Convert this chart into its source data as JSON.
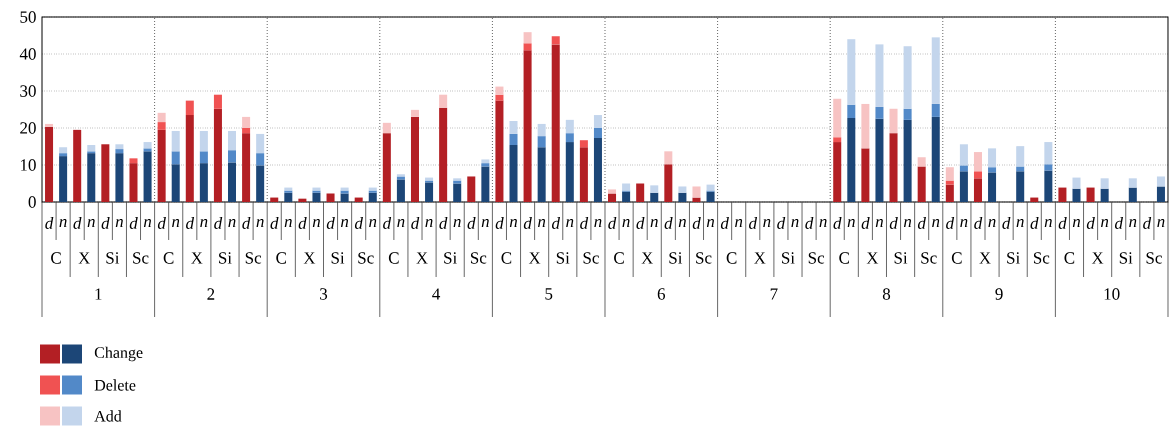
{
  "chart_data": {
    "type": "bar",
    "stacked": true,
    "grid": true,
    "legend": "bottom left",
    "categories": [
      "d",
      "n",
      "d",
      "n",
      "d",
      "n",
      "d",
      "n",
      "d",
      "n",
      "d",
      "n",
      "d",
      "n",
      "d",
      "n",
      "d",
      "n",
      "d",
      "n",
      "d",
      "n",
      "d",
      "n",
      "d",
      "n",
      "d",
      "n",
      "d",
      "n",
      "d",
      "n",
      "d",
      "n",
      "d",
      "n",
      "d",
      "n",
      "d",
      "n",
      "d",
      "n",
      "d",
      "n",
      "d",
      "n",
      "d",
      "n",
      "d",
      "n",
      "d",
      "n",
      "d",
      "n",
      "d",
      "n",
      "d",
      "n",
      "d",
      "n",
      "d",
      "n",
      "d",
      "n",
      "d",
      "n",
      "d",
      "n",
      "d",
      "n",
      "d",
      "n",
      "d",
      "n",
      "d",
      "n",
      "d",
      "n",
      "d",
      "n"
    ],
    "annotations": [
      "C",
      "X",
      "Si",
      "Sc",
      "C",
      "X",
      "Si",
      "Sc",
      "C",
      "X",
      "Si",
      "Sc",
      "C",
      "X",
      "Si",
      "Sc",
      "C",
      "X",
      "Si",
      "Sc",
      "C",
      "X",
      "Si",
      "Sc",
      "C",
      "X",
      "Si",
      "Sc",
      "C",
      "X",
      "Si",
      "Sc",
      "C",
      "X",
      "Si",
      "Sc",
      "C",
      "X",
      "Si",
      "Sc",
      "1",
      "2",
      "3",
      "4",
      "5",
      "6",
      "7",
      "8",
      "9",
      "10"
    ],
    "ylim": [
      0,
      50
    ],
    "yticks": [
      0,
      10,
      20,
      30,
      40,
      50
    ],
    "series": [
      {
        "name": "Change",
        "colors": [
          "#b31f24",
          "#1c4677",
          "#b31f24",
          "#1c4677",
          "#b31f24",
          "#1c4677",
          "#b31f24",
          "#1c4677",
          "#b31f24",
          "#1c4677",
          "#b31f24",
          "#1c4677",
          "#b31f24",
          "#1c4677",
          "#b31f24",
          "#1c4677",
          "#b31f24",
          "#1c4677",
          "#b31f24",
          "#1c4677",
          "#b31f24",
          "#1c4677",
          "#b31f24",
          "#1c4677",
          "#b31f24",
          "#1c4677",
          "#b31f24",
          "#1c4677",
          "#b31f24",
          "#1c4677",
          "#b31f24",
          "#1c4677",
          "#b31f24",
          "#1c4677",
          "#b31f24",
          "#1c4677",
          "#b31f24",
          "#1c4677",
          "#b31f24",
          "#1c4677",
          "#b31f24",
          "#1c4677",
          "#b31f24",
          "#1c4677",
          "#b31f24",
          "#1c4677",
          "#b31f24",
          "#1c4677",
          "#b31f24",
          "#1c4677",
          "#b31f24",
          "#1c4677",
          "#b31f24",
          "#1c4677",
          "#b31f24",
          "#1c4677",
          "#b31f24",
          "#1c4677",
          "#b31f24",
          "#1c4677",
          "#b31f24",
          "#1c4677",
          "#b31f24",
          "#1c4677",
          "#b31f24",
          "#1c4677",
          "#b31f24",
          "#1c4677",
          "#b31f24",
          "#1c4677",
          "#b31f24",
          "#1c4677",
          "#b31f24",
          "#1c4677",
          "#b31f24",
          "#1c4677",
          "#b31f24",
          "#1c4677",
          "#b31f24",
          "#1c4677"
        ],
        "values": [
          20.3,
          12.4,
          19.5,
          13.2,
          15.6,
          13.2,
          10.5,
          13.7,
          19.5,
          10.2,
          23.5,
          10.5,
          25.2,
          10.7,
          18.6,
          9.9,
          1.2,
          2.5,
          0.9,
          2.5,
          2.3,
          2.3,
          1.2,
          2.5,
          18.6,
          6.1,
          23.0,
          5.3,
          25.5,
          5.0,
          6.9,
          9.6,
          27.4,
          15.4,
          41.0,
          14.8,
          42.6,
          16.2,
          14.8,
          17.3,
          2.3,
          2.8,
          5.0,
          2.5,
          10.2,
          2.5,
          1.2,
          2.8,
          0,
          0,
          0,
          0,
          0,
          0,
          0,
          0,
          16.2,
          22.7,
          14.5,
          22.5,
          18.6,
          22.2,
          9.6,
          23.0,
          4.7,
          8.3,
          6.4,
          8.0,
          0,
          8.3,
          1.2,
          8.5,
          3.9,
          3.6,
          3.9,
          3.6,
          0,
          3.9,
          0,
          4.2
        ]
      },
      {
        "name": "Delete",
        "colors": [
          "#f05252",
          "#5289c8",
          "#f05252",
          "#5289c8",
          "#f05252",
          "#5289c8",
          "#f05252",
          "#5289c8",
          "#f05252",
          "#5289c8",
          "#f05252",
          "#5289c8",
          "#f05252",
          "#5289c8",
          "#f05252",
          "#5289c8",
          "#f05252",
          "#5289c8",
          "#f05252",
          "#5289c8",
          "#f05252",
          "#5289c8",
          "#f05252",
          "#5289c8",
          "#f05252",
          "#5289c8",
          "#f05252",
          "#5289c8",
          "#f05252",
          "#5289c8",
          "#f05252",
          "#5289c8",
          "#f05252",
          "#5289c8",
          "#f05252",
          "#5289c8",
          "#f05252",
          "#5289c8",
          "#f05252",
          "#5289c8",
          "#f05252",
          "#5289c8",
          "#f05252",
          "#5289c8",
          "#f05252",
          "#5289c8",
          "#f05252",
          "#5289c8",
          "#f05252",
          "#5289c8",
          "#f05252",
          "#5289c8",
          "#f05252",
          "#5289c8",
          "#f05252",
          "#5289c8",
          "#f05252",
          "#5289c8",
          "#f05252",
          "#5289c8",
          "#f05252",
          "#5289c8",
          "#f05252",
          "#5289c8",
          "#f05252",
          "#5289c8",
          "#f05252",
          "#5289c8",
          "#f05252",
          "#5289c8",
          "#f05252",
          "#5289c8",
          "#f05252",
          "#5289c8",
          "#f05252",
          "#5289c8",
          "#f05252",
          "#5289c8",
          "#f05252",
          "#5289c8"
        ],
        "values": [
          0,
          0.8,
          0,
          0.5,
          0,
          1.1,
          1.3,
          0.8,
          2.1,
          3.5,
          3.9,
          3.2,
          3.8,
          3.3,
          1.4,
          3.3,
          0,
          0.6,
          0,
          0.6,
          0,
          0.8,
          0,
          0.6,
          0,
          0.8,
          0,
          0.5,
          0,
          0.8,
          0,
          0.9,
          1.6,
          3.0,
          1.9,
          3.0,
          2.2,
          2.4,
          1.9,
          2.7,
          0,
          0.3,
          0,
          0,
          0,
          0,
          0,
          0.3,
          0,
          0,
          0,
          0,
          0,
          0,
          0,
          0,
          1.3,
          3.6,
          0,
          3.2,
          0,
          3.0,
          0,
          3.5,
          1.1,
          1.6,
          1.9,
          1.4,
          0,
          1.3,
          0,
          1.7,
          0,
          0,
          0,
          0,
          0,
          0,
          0,
          0
        ]
      },
      {
        "name": "Add",
        "colors": [
          "#f7c3c3",
          "#c3d5ec",
          "#f7c3c3",
          "#c3d5ec",
          "#f7c3c3",
          "#c3d5ec",
          "#f7c3c3",
          "#c3d5ec",
          "#f7c3c3",
          "#c3d5ec",
          "#f7c3c3",
          "#c3d5ec",
          "#f7c3c3",
          "#c3d5ec",
          "#f7c3c3",
          "#c3d5ec",
          "#f7c3c3",
          "#c3d5ec",
          "#f7c3c3",
          "#c3d5ec",
          "#f7c3c3",
          "#c3d5ec",
          "#f7c3c3",
          "#c3d5ec",
          "#f7c3c3",
          "#c3d5ec",
          "#f7c3c3",
          "#c3d5ec",
          "#f7c3c3",
          "#c3d5ec",
          "#f7c3c3",
          "#c3d5ec",
          "#f7c3c3",
          "#c3d5ec",
          "#f7c3c3",
          "#c3d5ec",
          "#f7c3c3",
          "#c3d5ec",
          "#f7c3c3",
          "#c3d5ec",
          "#f7c3c3",
          "#c3d5ec",
          "#f7c3c3",
          "#c3d5ec",
          "#f7c3c3",
          "#c3d5ec",
          "#f7c3c3",
          "#c3d5ec",
          "#f7c3c3",
          "#c3d5ec",
          "#f7c3c3",
          "#c3d5ec",
          "#f7c3c3",
          "#c3d5ec",
          "#f7c3c3",
          "#c3d5ec",
          "#f7c3c3",
          "#c3d5ec",
          "#f7c3c3",
          "#c3d5ec",
          "#f7c3c3",
          "#c3d5ec",
          "#f7c3c3",
          "#c3d5ec",
          "#f7c3c3",
          "#c3d5ec",
          "#f7c3c3",
          "#c3d5ec",
          "#f7c3c3",
          "#c3d5ec",
          "#f7c3c3",
          "#c3d5ec",
          "#f7c3c3",
          "#c3d5ec",
          "#f7c3c3",
          "#c3d5ec",
          "#f7c3c3",
          "#c3d5ec",
          "#f7c3c3",
          "#c3d5ec"
        ],
        "values": [
          0.8,
          1.6,
          0,
          1.7,
          0,
          1.3,
          0,
          1.7,
          2.5,
          5.5,
          0,
          5.5,
          0,
          5.2,
          3.0,
          5.2,
          0,
          0.8,
          0,
          0.8,
          0,
          0.8,
          0,
          0.8,
          2.8,
          0.6,
          1.9,
          0.8,
          3.5,
          0.6,
          0,
          1.0,
          2.2,
          3.5,
          3.0,
          3.3,
          0,
          3.6,
          0,
          3.5,
          1.1,
          1.9,
          0,
          2.0,
          3.5,
          1.7,
          3.0,
          1.6,
          0,
          0,
          0,
          0,
          0,
          0,
          0,
          0,
          10.4,
          17.7,
          12.0,
          16.9,
          6.6,
          16.9,
          2.5,
          18.0,
          3.6,
          5.7,
          5.2,
          5.1,
          0,
          5.5,
          0,
          6.0,
          0,
          3.0,
          0,
          2.8,
          0,
          2.5,
          0,
          2.7
        ]
      }
    ]
  }
}
